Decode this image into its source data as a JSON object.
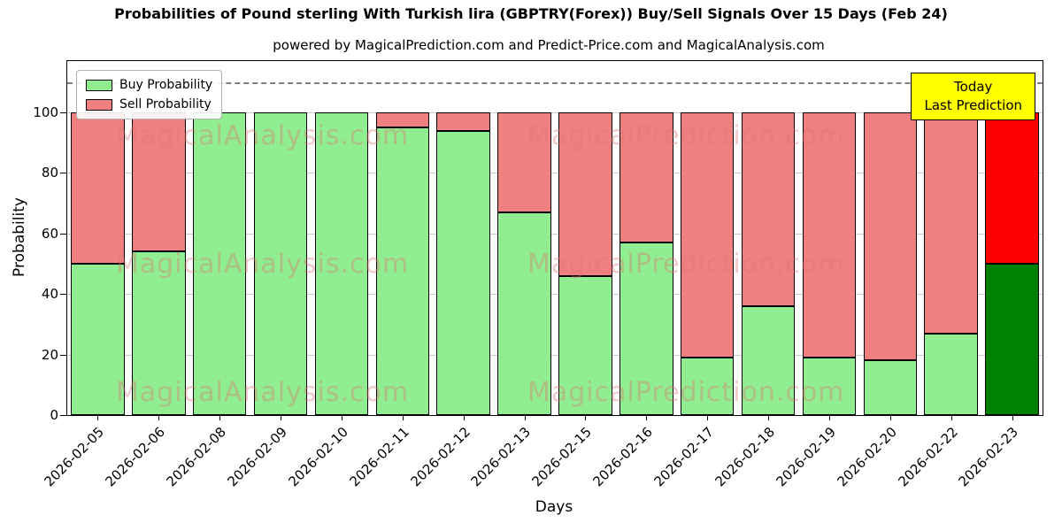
{
  "title": "Probabilities of Pound sterling With Turkish lira (GBPTRY(Forex)) Buy/Sell Signals Over 15 Days (Feb 24)",
  "subtitle": "powered by MagicalPrediction.com and Predict-Price.com and MagicalAnalysis.com",
  "annotation": {
    "line1": "Today",
    "line2": "Last Prediction",
    "background": "#ffff00"
  },
  "legend": [
    {
      "label": "Buy Probability",
      "color": "#90EE90"
    },
    {
      "label": "Sell Probability",
      "color": "#F08080"
    }
  ],
  "watermarks": {
    "left": "MagicalAnalysis.com",
    "right": "MagicalPrediction.com"
  },
  "chart_data": {
    "type": "bar",
    "stacked": true,
    "title": "Probabilities of Pound sterling With Turkish lira (GBPTRY(Forex)) Buy/Sell Signals Over 15 Days (Feb 24)",
    "xlabel": "Days",
    "ylabel": "Probability",
    "categories": [
      "2026-02-05",
      "2026-02-06",
      "2026-02-08",
      "2026-02-09",
      "2026-02-10",
      "2026-02-11",
      "2026-02-12",
      "2026-02-13",
      "2026-02-15",
      "2026-02-16",
      "2026-02-17",
      "2026-02-18",
      "2026-02-19",
      "2026-02-20",
      "2026-02-22",
      "2026-02-23"
    ],
    "series": [
      {
        "name": "Buy Probability",
        "color": "#90EE90",
        "last_color": "#008000",
        "values": [
          50,
          54,
          100,
          100,
          100,
          95,
          94,
          67,
          46,
          57,
          19,
          36,
          19,
          18,
          27,
          50
        ]
      },
      {
        "name": "Sell Probability",
        "color": "#F08080",
        "last_color": "#FF0000",
        "values": [
          50,
          46,
          0,
          0,
          0,
          5,
          6,
          33,
          54,
          43,
          81,
          64,
          81,
          82,
          73,
          50
        ]
      }
    ],
    "yticks": [
      0,
      20,
      40,
      60,
      80,
      100
    ],
    "ylim": [
      0,
      117
    ],
    "dashed_line_y": 110,
    "grid": true,
    "legend_position": "upper left",
    "bar_edge_color": "#000000"
  }
}
